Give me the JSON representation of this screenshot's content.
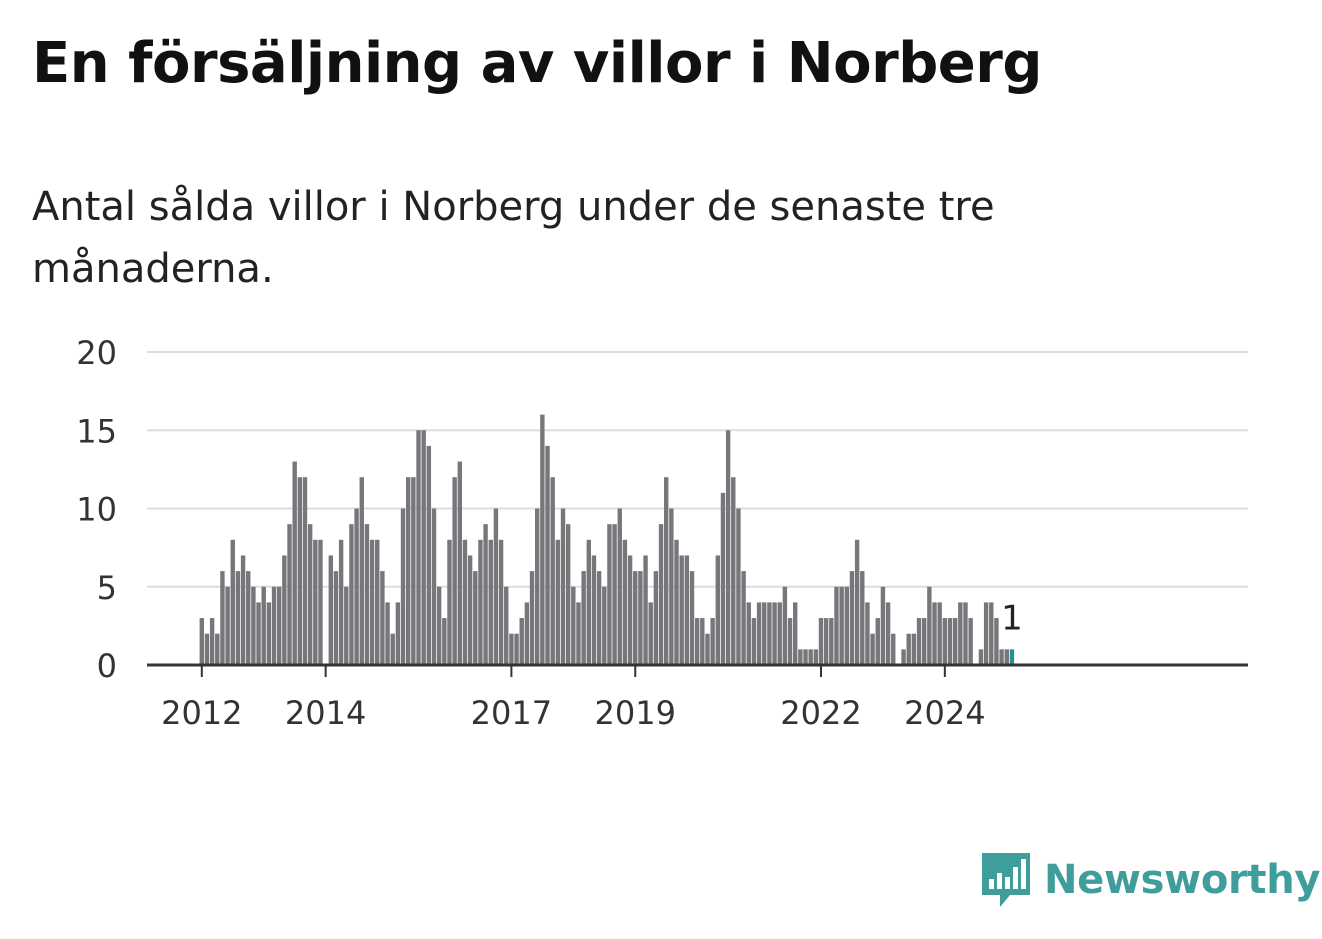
{
  "title": "En försäljning av villor i Norberg",
  "subtitle": "Antal sålda villor i Norberg under de senaste tre månaderna.",
  "brand": {
    "name": "Newsworthy",
    "icon": "newsworthy-logo-icon",
    "color": "#3f9e9b"
  },
  "colors": {
    "bar": "#77767b",
    "highlight": "#26928f",
    "grid": "#dddddd",
    "axis": "#333333"
  },
  "chart_data": {
    "type": "bar",
    "title": "",
    "xlabel": "",
    "ylabel": "",
    "ylim": [
      0,
      20
    ],
    "yticks": [
      0,
      5,
      10,
      15,
      20
    ],
    "grid": true,
    "start_month": "2011-03",
    "xticks": [
      {
        "label": "2012",
        "month": "2012-01"
      },
      {
        "label": "2014",
        "month": "2014-01"
      },
      {
        "label": "2017",
        "month": "2017-01"
      },
      {
        "label": "2019",
        "month": "2019-01"
      },
      {
        "label": "2022",
        "month": "2022-01"
      },
      {
        "label": "2024",
        "month": "2024-01"
      }
    ],
    "values": [
      0,
      0,
      0,
      0,
      0,
      0,
      0,
      0,
      0,
      0,
      3,
      2,
      3,
      2,
      6,
      5,
      8,
      6,
      7,
      6,
      5,
      4,
      5,
      4,
      5,
      5,
      7,
      9,
      13,
      12,
      12,
      9,
      8,
      8,
      0,
      7,
      6,
      8,
      5,
      9,
      10,
      12,
      9,
      8,
      8,
      6,
      4,
      2,
      4,
      10,
      12,
      12,
      15,
      15,
      14,
      10,
      5,
      3,
      8,
      12,
      13,
      8,
      7,
      6,
      8,
      9,
      8,
      10,
      8,
      5,
      2,
      2,
      3,
      4,
      6,
      10,
      16,
      14,
      12,
      8,
      10,
      9,
      5,
      4,
      6,
      8,
      7,
      6,
      5,
      9,
      9,
      10,
      8,
      7,
      6,
      6,
      7,
      4,
      6,
      9,
      12,
      10,
      8,
      7,
      7,
      6,
      3,
      3,
      2,
      3,
      7,
      11,
      15,
      12,
      10,
      6,
      4,
      3,
      4,
      4,
      4,
      4,
      4,
      5,
      3,
      4,
      1,
      1,
      1,
      1,
      3,
      3,
      3,
      5,
      5,
      5,
      6,
      8,
      6,
      4,
      2,
      3,
      5,
      4,
      2,
      0,
      1,
      2,
      2,
      3,
      3,
      5,
      4,
      4,
      3,
      3,
      3,
      4,
      4,
      3,
      0,
      1,
      4,
      4,
      3,
      1,
      1,
      1
    ],
    "highlight_last": true,
    "annotation": {
      "text": "1"
    }
  }
}
